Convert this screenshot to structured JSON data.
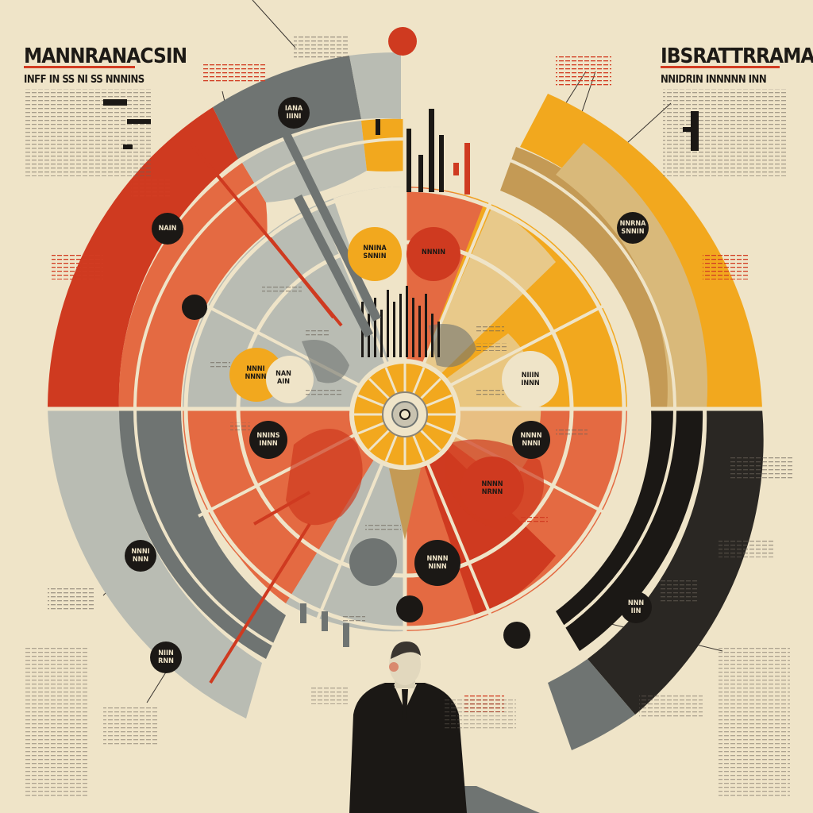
{
  "left_header": {
    "title": "MANNRANACSIN",
    "subtitle": "INFF IN SS NI SS NNNINS"
  },
  "right_header": {
    "title": "IBSRATTRRAMAN",
    "subtitle": "NNIDRIN INNNNN INN"
  },
  "badges": {
    "b1": "IANA\nIIINI",
    "b2": "NAIN",
    "b3": "NNRNA\nSNNIN",
    "b4": "NNINA\nSNNIN",
    "b5": "NNNIN",
    "b6": "NNNI\nNNNN",
    "b7": "NAN\nAIN",
    "b8": "NIIIN\nINNN",
    "b9": "NNINS\nINNN",
    "b10": "NNNN\nNNNI",
    "b11": "NNNN\nNRNN",
    "b12": "NNNN\nNINN",
    "b13": "NNNI\nNNN",
    "b14": "NNN\nIIN",
    "b15": "NIIN\nRNN"
  },
  "colors": {
    "cream": "#efe4c8",
    "red": "#cf3a20",
    "orange": "#e46a42",
    "yellow": "#f2a81e",
    "khaki": "#c49a55",
    "slate": "#6f7472",
    "grey": "#b9bcb3",
    "black": "#1b1815"
  }
}
